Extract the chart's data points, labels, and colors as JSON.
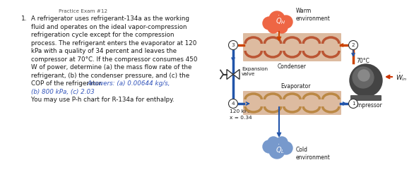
{
  "title_text": "Practice Exam #12",
  "problem_number": "1.",
  "problem_text_lines": [
    "A refrigerator uses refrigerant-134a as the working",
    "fluid and operates on the ideal vapor-compression",
    "refrigeration cycle except for the compression",
    "process. The refrigerant enters the evaporator at 120",
    "kPa with a quality of 34 percent and leaves the",
    "compressor at 70°C. If the compressor consumes 450",
    "W of power, determine (a) the mass flow rate of the",
    "refrigerant, (b) the condenser pressure, and (c) the",
    "COP of the refrigerator. "
  ],
  "answers_inline": "Answers: (a) 0.00644 kg/s,",
  "answers_line2": "(b) 800 kPa, (c) 2.03",
  "note_text": "You may use P-h chart for R-134a for enthalpy.",
  "text_color": "#1a1a1a",
  "answer_color": "#3355bb",
  "pipe_hot": "#cc4400",
  "pipe_cold": "#2255aa",
  "coil_hot": "#bb5533",
  "coil_cold": "#bb8844",
  "cloud_warm": "#ee6644",
  "cloud_cold": "#7799cc",
  "node_bg": "#ffffff",
  "node_border": "#333333",
  "compressor_dark": "#444444",
  "compressor_mid": "#666666",
  "compressor_light": "#888888",
  "diagram": {
    "warm_env_text": "Warm\nenvironment",
    "cold_env_text": "Cold\nenvironment",
    "condenser_text": "Condenser",
    "evaporator_text": "Evaporator",
    "compressor_text": "Compressor",
    "expansion_valve_text": "Expansion\nvalve",
    "temp_text": "70°C",
    "pressure_text": "120 kPa",
    "quality_text": "x = 0.34",
    "node1": "1",
    "node2": "2",
    "node3": "3",
    "node4": "4"
  }
}
